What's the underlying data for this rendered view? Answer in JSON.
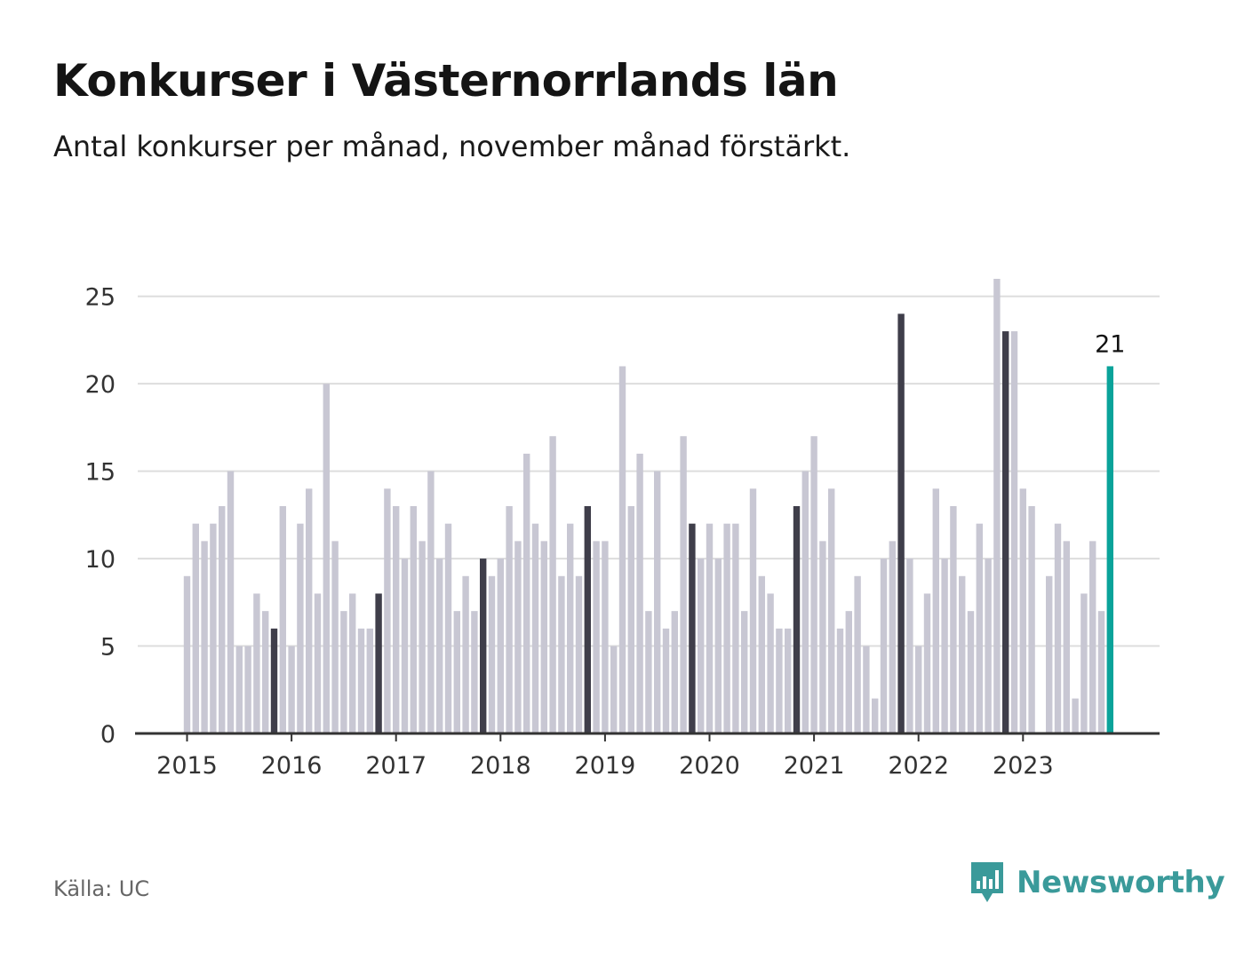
{
  "chart_data": {
    "type": "bar",
    "title": "Konkurser i Västernorrlands län",
    "subtitle": "Antal konkurser per månad, november månad förstärkt.",
    "x_tick_labels": [
      "2015",
      "2016",
      "2017",
      "2018",
      "2019",
      "2020",
      "2021",
      "2022",
      "2023"
    ],
    "y_ticks": [
      0,
      5,
      10,
      15,
      20,
      25
    ],
    "ylim": [
      0,
      26
    ],
    "grid": true,
    "start": "2015-01",
    "values": [
      9,
      12,
      11,
      12,
      13,
      15,
      5,
      5,
      8,
      7,
      6,
      13,
      5,
      12,
      14,
      8,
      20,
      11,
      7,
      8,
      6,
      6,
      8,
      14,
      13,
      10,
      13,
      11,
      15,
      10,
      12,
      7,
      9,
      7,
      10,
      9,
      10,
      13,
      11,
      16,
      12,
      11,
      17,
      9,
      12,
      9,
      13,
      11,
      11,
      5,
      21,
      13,
      16,
      7,
      15,
      6,
      7,
      17,
      12,
      10,
      12,
      10,
      12,
      12,
      7,
      14,
      9,
      8,
      6,
      6,
      13,
      15,
      17,
      11,
      14,
      6,
      7,
      9,
      5,
      2,
      10,
      11,
      24,
      10,
      5,
      8,
      14,
      10,
      13,
      9,
      7,
      12,
      10,
      26,
      23,
      23,
      14,
      13,
      0,
      9,
      12,
      11,
      2,
      8,
      11,
      7,
      21
    ],
    "highlight_month": "november",
    "latest_label": "21",
    "colors": {
      "default": "#c8c7d3",
      "highlight": "#3f3e4a",
      "latest": "#0aa39a",
      "grid": "#dddddd",
      "axis": "#333333"
    }
  },
  "footer": {
    "source": "Källa: UC",
    "brand": "Newsworthy"
  },
  "icons": {
    "brand": "newsworthy-logo-icon"
  }
}
